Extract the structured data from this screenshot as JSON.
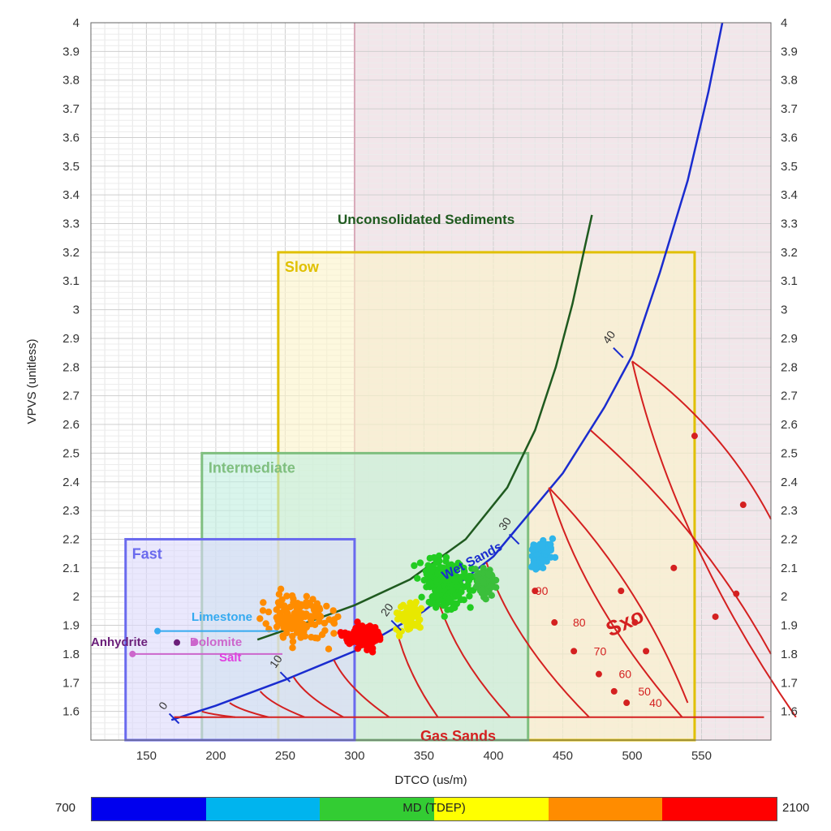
{
  "chart_data": {
    "type": "scatter",
    "xlabel": "DTCO (us/m)",
    "ylabel": "VPVS (unitless)",
    "xlim": [
      110,
      600
    ],
    "ylim": [
      1.5,
      4.0
    ],
    "x_ticks": [
      "150",
      "200",
      "250",
      "300",
      "350",
      "400",
      "450",
      "500",
      "550"
    ],
    "y_ticks": [
      "1.6",
      "1.7",
      "1.8",
      "1.9",
      "2",
      "2.1",
      "2.2",
      "2.3",
      "2.4",
      "2.5",
      "2.6",
      "2.7",
      "2.8",
      "2.9",
      "3",
      "3.1",
      "3.2",
      "3.3",
      "3.4",
      "3.5",
      "3.6",
      "3.7",
      "3.8",
      "3.9",
      "4"
    ],
    "grid": true,
    "regions": [
      {
        "name": "Slow",
        "x": [
          245,
          545
        ],
        "y": [
          1.5,
          3.2
        ],
        "color": "#e0c000",
        "fill": "#fbf3c8"
      },
      {
        "name": "Intermediate",
        "x": [
          190,
          425
        ],
        "y": [
          1.5,
          2.5
        ],
        "color": "#7fbf7f",
        "fill": "#bfeee0"
      },
      {
        "name": "Fast",
        "x": [
          135,
          300
        ],
        "y": [
          1.5,
          2.2
        ],
        "color": "#6a6aee",
        "fill": "#dcd8fb"
      }
    ],
    "curves": {
      "unconsolidated": {
        "label": "Unconsolidated Sediments",
        "color": "#1f5a1f",
        "points": [
          [
            230,
            1.85
          ],
          [
            260,
            1.9
          ],
          [
            300,
            1.97
          ],
          [
            340,
            2.06
          ],
          [
            380,
            2.2
          ],
          [
            410,
            2.38
          ],
          [
            430,
            2.58
          ],
          [
            445,
            2.8
          ],
          [
            457,
            3.02
          ],
          [
            466,
            3.22
          ],
          [
            471,
            3.33
          ]
        ]
      },
      "wet_sands": {
        "label": "Wet Sands",
        "color": "#1a2ccf",
        "points": [
          [
            168,
            1.57
          ],
          [
            200,
            1.62
          ],
          [
            250,
            1.71
          ],
          [
            300,
            1.81
          ],
          [
            350,
            1.95
          ],
          [
            400,
            2.14
          ],
          [
            450,
            2.43
          ],
          [
            480,
            2.66
          ],
          [
            500,
            2.84
          ],
          [
            520,
            3.13
          ],
          [
            540,
            3.45
          ],
          [
            555,
            3.76
          ],
          [
            565,
            4.0
          ]
        ]
      },
      "gas_sands": {
        "label": "Gas Sands",
        "color": "#d42020",
        "y": 1.58,
        "x": [
          170,
          595
        ]
      },
      "sxo": {
        "label": "Sxo",
        "color": "#d42020"
      }
    },
    "porosity_labels": [
      "0",
      "10",
      "20",
      "30",
      "40"
    ],
    "sxo_labels": [
      "90",
      "80",
      "70",
      "60",
      "50",
      "40"
    ],
    "minerals": [
      {
        "name": "Limestone",
        "x": 158,
        "y": 1.88,
        "color": "#35aaf0"
      },
      {
        "name": "Anhydrite",
        "x": 172,
        "y": 1.84,
        "color": "#6b1f7a"
      },
      {
        "name": "Dolomite",
        "x": 185,
        "y": 1.84,
        "color": "#cc66cc"
      },
      {
        "name": "Salt",
        "x": 140,
        "y": 1.8,
        "color": "#cc66cc"
      }
    ],
    "series": [
      {
        "name": "",
        "color": "#ff8c00",
        "n": 140,
        "cx": 260,
        "cy": 1.92,
        "sx": 35,
        "sy": 0.13
      },
      {
        "name": "",
        "color": "#ff0000",
        "n": 190,
        "cx": 305,
        "cy": 1.86,
        "sx": 18,
        "sy": 0.05
      },
      {
        "name": "",
        "color": "#e8e800",
        "n": 70,
        "cx": 340,
        "cy": 1.93,
        "sx": 12,
        "sy": 0.07
      },
      {
        "name": "",
        "color": "#22cc22",
        "n": 260,
        "cx": 365,
        "cy": 2.05,
        "sx": 24,
        "sy": 0.12
      },
      {
        "name": "",
        "color": "#3bbf3b",
        "n": 70,
        "cx": 395,
        "cy": 2.05,
        "sx": 10,
        "sy": 0.06
      },
      {
        "name": "",
        "color": "#2fb5ea",
        "n": 80,
        "cx": 435,
        "cy": 2.15,
        "sx": 12,
        "sy": 0.07
      }
    ]
  },
  "colorbar": {
    "min_label": "700",
    "max_label": "2100",
    "title": "MD (TDEP)",
    "colors": [
      "#0000ee",
      "#00b4ee",
      "#33cc33",
      "#ffff00",
      "#ff8c00",
      "#ff0000"
    ]
  }
}
